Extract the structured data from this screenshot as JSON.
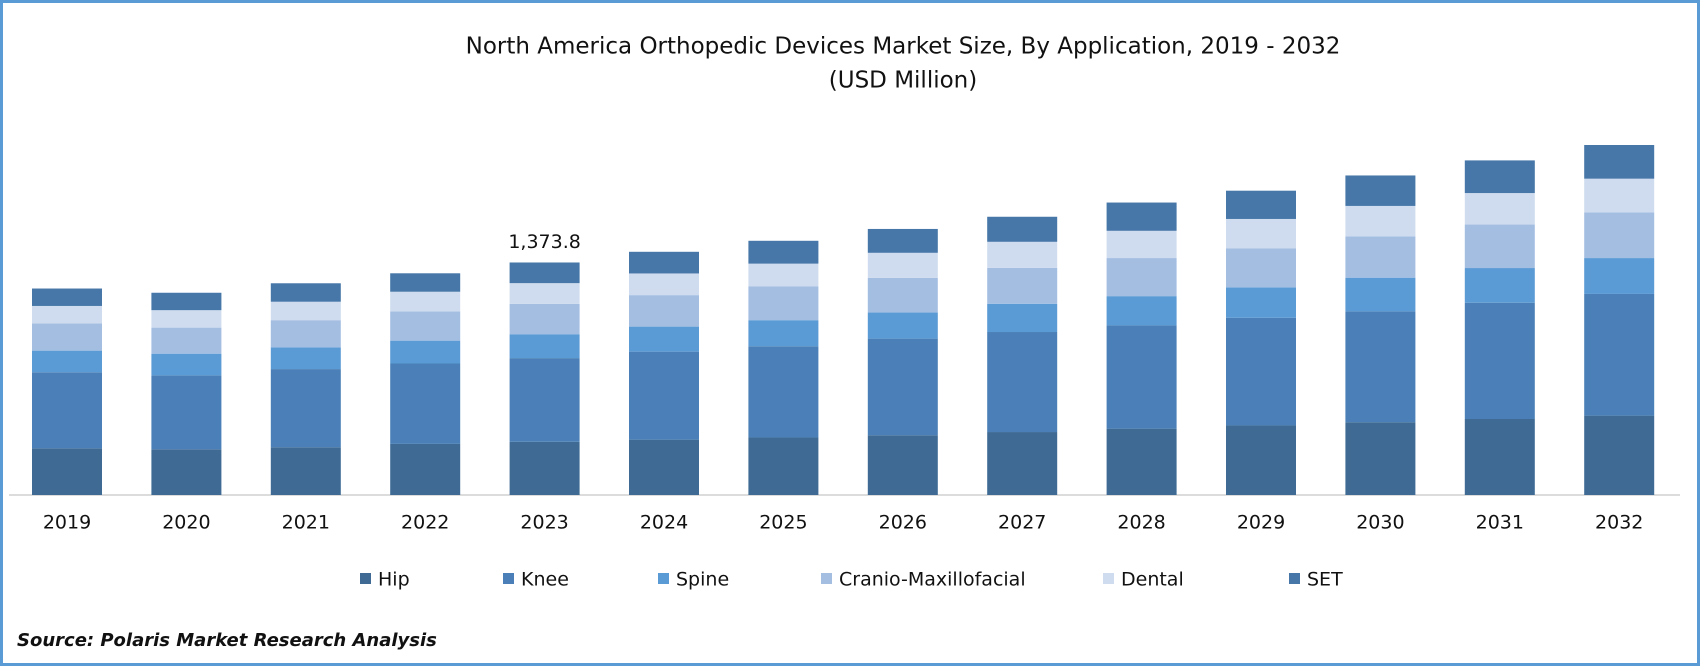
{
  "chart_data": {
    "type": "stacked_bar",
    "title": "North America Orthopedic Devices Market Size, By Application, 2019 - 2032",
    "subtitle": "(USD Million)",
    "source": "Source: Polaris Market Research Analysis",
    "categories": [
      "2019",
      "2020",
      "2021",
      "2022",
      "2023",
      "2024",
      "2025",
      "2026",
      "2027",
      "2028",
      "2029",
      "2030",
      "2031",
      "2032"
    ],
    "series": [
      {
        "name": "Hip",
        "color": "#3e6a94",
        "values": [
          276,
          270,
          282,
          302,
          314.5,
          327,
          340,
          353,
          372,
          392,
          411,
          430,
          449,
          469
        ]
      },
      {
        "name": "Knee",
        "color": "#4a80b7",
        "values": [
          449,
          437,
          462,
          475,
          494.3,
          520,
          539,
          571,
          591,
          610,
          636,
          655,
          687,
          719
        ]
      },
      {
        "name": "Spine",
        "color": "#5b9bd5",
        "values": [
          128,
          128,
          128,
          135,
          141.2,
          148,
          154,
          154,
          167,
          173,
          180,
          199,
          205,
          212
        ]
      },
      {
        "name": "Cranio-Maxillofacial",
        "color": "#a4bee2",
        "values": [
          161,
          154,
          161,
          173,
          179.8,
          186,
          199,
          205,
          212,
          225,
          231,
          244,
          257,
          270
        ]
      },
      {
        "name": "Dental",
        "color": "#cfdcef",
        "values": [
          103,
          103,
          109,
          116,
          122,
          128,
          135,
          148,
          154,
          161,
          173,
          180,
          186,
          199
        ]
      },
      {
        "name": "SET",
        "color": "#4677a8",
        "values": [
          103,
          103,
          109,
          109,
          122,
          128,
          135,
          141,
          148,
          167,
          167,
          180,
          193,
          199
        ]
      }
    ],
    "total_label": {
      "category": "2023",
      "value": 1373.8,
      "label": "1,373.8"
    },
    "legend": "bottom"
  }
}
